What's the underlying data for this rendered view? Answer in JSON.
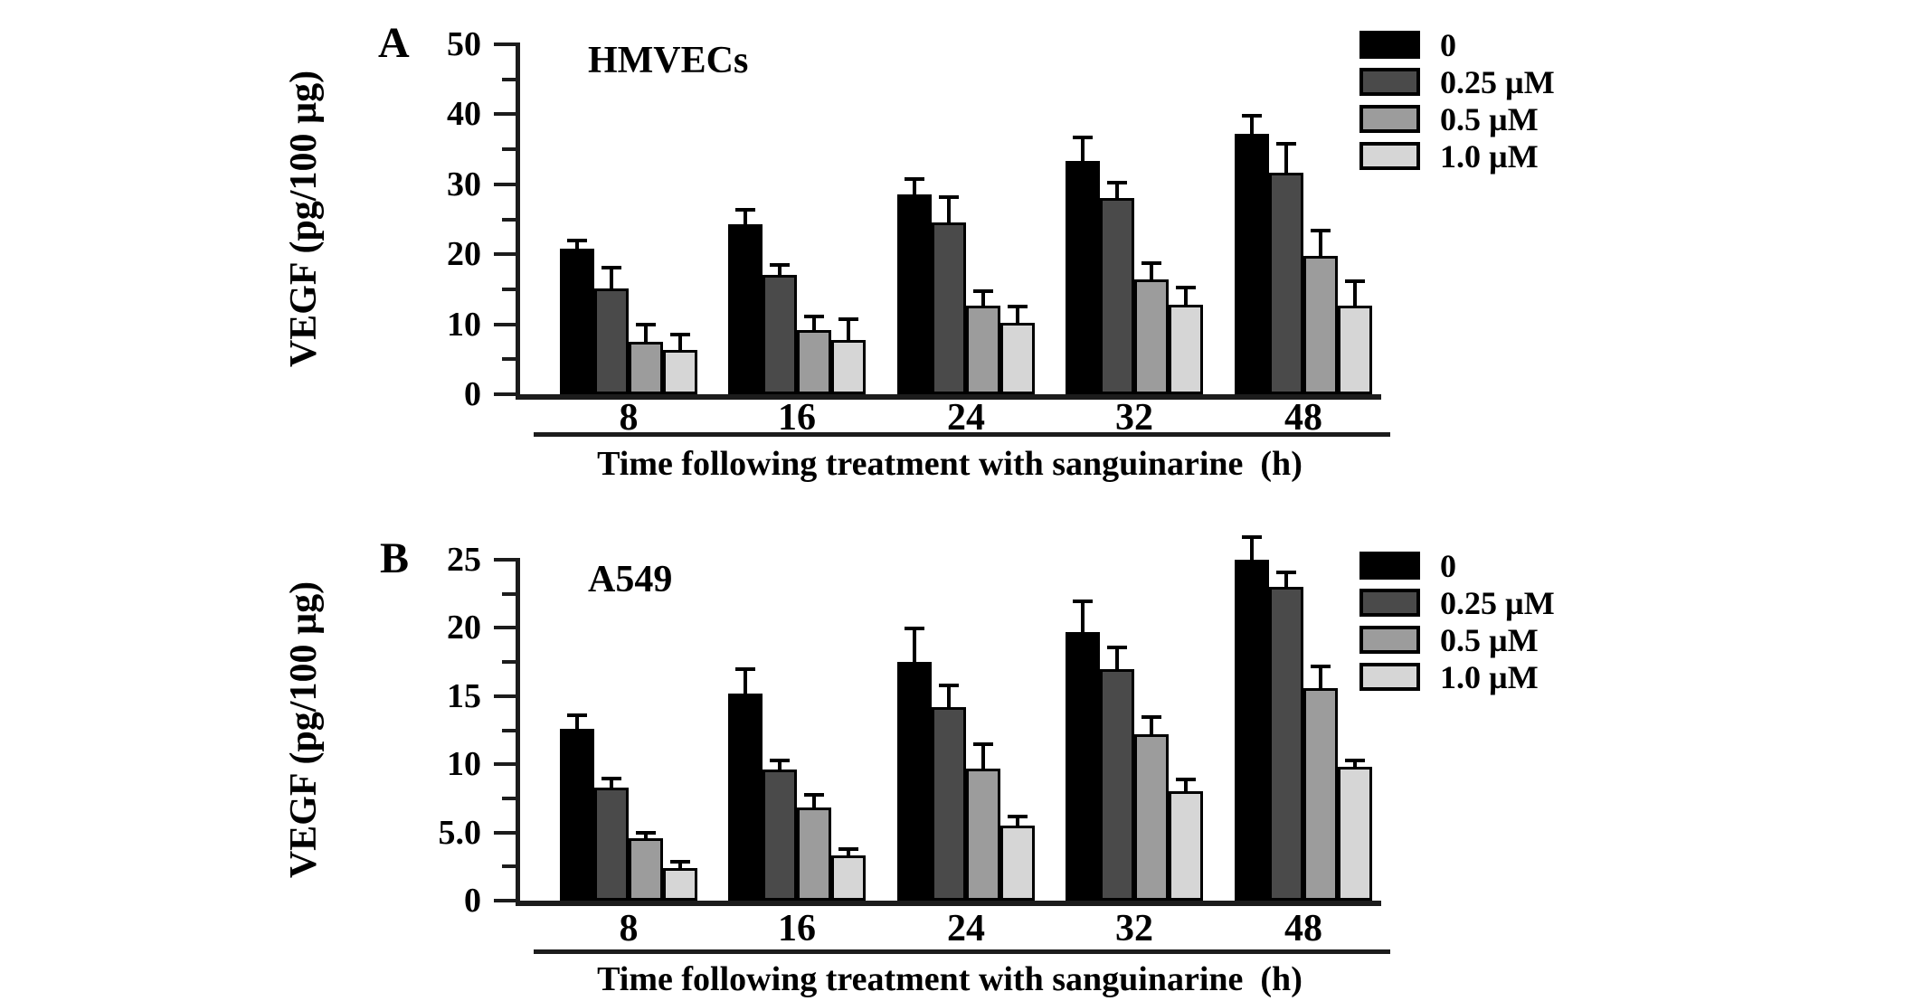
{
  "figure": {
    "background": "#ffffff",
    "axis_color": "#1c1c1c",
    "series_colors": [
      "#000000",
      "#4a4a4a",
      "#9c9c9c",
      "#d6d6d6"
    ],
    "legend_labels": [
      "0",
      "0.25 µM",
      "0.5 µM",
      "1.0 µM"
    ]
  },
  "chart_data": [
    {
      "type": "bar",
      "panel": "A",
      "title": "HMVECs",
      "xlabel": "Time following treatment with sanguinarine  (h)",
      "ylabel": "VEGF (pg/100 µg)",
      "categories": [
        "8",
        "16",
        "24",
        "32",
        "48"
      ],
      "ylim": [
        0,
        50
      ],
      "ytick_values": [
        0,
        10,
        20,
        30,
        40,
        50
      ],
      "ytick_labels": [
        "0",
        "10",
        "20",
        "30",
        "40",
        "50"
      ],
      "minor_tick_values": [
        5,
        15,
        25,
        35,
        45
      ],
      "grid": false,
      "legend_position": "top-right",
      "series": [
        {
          "name": "0",
          "values": [
            20.8,
            24.3,
            28.6,
            33.3,
            37.2
          ],
          "errors": [
            1.4,
            2.3,
            2.4,
            3.7,
            2.8
          ]
        },
        {
          "name": "0.25 µM",
          "values": [
            15.1,
            17.1,
            24.5,
            28.0,
            31.7
          ],
          "errors": [
            3.2,
            1.6,
            3.9,
            2.5,
            4.4
          ]
        },
        {
          "name": "0.5 µM",
          "values": [
            7.5,
            9.2,
            12.7,
            16.4,
            19.8
          ],
          "errors": [
            2.7,
            2.2,
            2.3,
            2.6,
            3.9
          ]
        },
        {
          "name": "1.0 µM",
          "values": [
            6.3,
            7.8,
            10.2,
            12.8,
            12.6
          ],
          "errors": [
            2.5,
            3.2,
            2.6,
            2.7,
            3.8
          ]
        }
      ]
    },
    {
      "type": "bar",
      "panel": "B",
      "title": "A549",
      "xlabel": "Time following treatment with sanguinarine  (h)",
      "ylabel": "VEGF (pg/100 µg)",
      "categories": [
        "8",
        "16",
        "24",
        "32",
        "48"
      ],
      "ylim": [
        0,
        25
      ],
      "ytick_values": [
        0,
        5,
        10,
        15,
        20,
        25
      ],
      "ytick_labels": [
        "0",
        "5.0",
        "10",
        "15",
        "20",
        "25"
      ],
      "minor_tick_values": [
        2.5,
        7.5,
        12.5,
        17.5,
        22.5
      ],
      "grid": false,
      "legend_position": "top-right",
      "series": [
        {
          "name": "0",
          "values": [
            12.6,
            15.2,
            17.5,
            19.7,
            25.0
          ],
          "errors": [
            1.1,
            1.9,
            2.6,
            2.4,
            1.8
          ]
        },
        {
          "name": "0.25 µM",
          "values": [
            8.3,
            9.6,
            14.2,
            17.0,
            23.0
          ],
          "errors": [
            0.8,
            0.8,
            1.7,
            1.7,
            1.2
          ]
        },
        {
          "name": "0.5 µM",
          "values": [
            4.6,
            6.8,
            9.7,
            12.2,
            15.6
          ],
          "errors": [
            0.5,
            1.1,
            1.9,
            1.4,
            1.7
          ]
        },
        {
          "name": "1.0 µM",
          "values": [
            2.4,
            3.3,
            5.5,
            8.0,
            9.8
          ],
          "errors": [
            0.6,
            0.6,
            0.8,
            1.0,
            0.6
          ]
        }
      ]
    }
  ]
}
